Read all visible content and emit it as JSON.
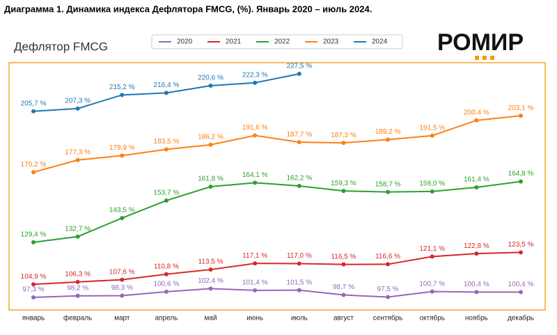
{
  "caption": "Диаграмма 1. Динамика индекса Дефлятора FMCG, (%). Январь 2020 – июль 2024.",
  "logo": "РОМИР",
  "chart_data": {
    "type": "line",
    "title": "Дефлятор FMCG",
    "categories": [
      "январь",
      "февраль",
      "март",
      "апрель",
      "май",
      "июнь",
      "июль",
      "август",
      "сентябрь",
      "октябрь",
      "ноябрь",
      "декабрь"
    ],
    "ylim": [
      90,
      234
    ],
    "legend": "top",
    "series": [
      {
        "name": "2020",
        "color": "#9467bd",
        "values": [
          97.3,
          98.2,
          98.3,
          100.6,
          102.4,
          101.4,
          101.5,
          98.7,
          97.5,
          100.7,
          100.4,
          100.4
        ],
        "value_labels": [
          "97,3 %",
          "98,2 %",
          "98,3 %",
          "100,6 %",
          "102,4 %",
          "101,4 %",
          "101,5 %",
          "98,7 %",
          "97,5 %",
          "100,7 %",
          "100,4 %",
          "100,4 %"
        ]
      },
      {
        "name": "2021",
        "color": "#d62728",
        "values": [
          104.9,
          106.3,
          107.6,
          110.8,
          113.5,
          117.1,
          117.0,
          116.5,
          116.6,
          121.1,
          122.8,
          123.5
        ],
        "value_labels": [
          "104,9 %",
          "106,3 %",
          "107,6 %",
          "110,8 %",
          "113,5 %",
          "117,1 %",
          "117,0 %",
          "116,5 %",
          "116,6 %",
          "121,1 %",
          "122,8 %",
          "123,5 %"
        ]
      },
      {
        "name": "2022",
        "color": "#2ca02c",
        "values": [
          129.4,
          132.7,
          143.5,
          153.7,
          161.8,
          164.1,
          162.2,
          159.3,
          158.7,
          159.0,
          161.4,
          164.8
        ],
        "value_labels": [
          "129,4 %",
          "132,7 %",
          "143,5 %",
          "153,7 %",
          "161,8 %",
          "164,1 %",
          "162,2 %",
          "159,3 %",
          "158,7 %",
          "159,0 %",
          "161,4 %",
          "164,8 %"
        ]
      },
      {
        "name": "2023",
        "color": "#ff7f0e",
        "values": [
          170.2,
          177.3,
          179.9,
          183.5,
          186.2,
          191.6,
          187.7,
          187.3,
          189.2,
          191.5,
          200.4,
          203.1
        ],
        "value_labels": [
          "170,2 %",
          "177,3 %",
          "179,9 %",
          "183,5 %",
          "186,2 %",
          "191,6 %",
          "187,7 %",
          "187,3 %",
          "189,2 %",
          "191,5 %",
          "200,4 %",
          "203,1 %"
        ]
      },
      {
        "name": "2024",
        "color": "#1f77b4",
        "values": [
          205.7,
          207.3,
          215.2,
          216.4,
          220.6,
          222.3,
          227.5,
          null,
          null,
          null,
          null,
          null
        ],
        "value_labels": [
          "205,7 %",
          "207,3 %",
          "215,2 %",
          "216,4 %",
          "220,6 %",
          "222,3 %",
          "227,5 %",
          null,
          null,
          null,
          null,
          null
        ]
      }
    ]
  }
}
